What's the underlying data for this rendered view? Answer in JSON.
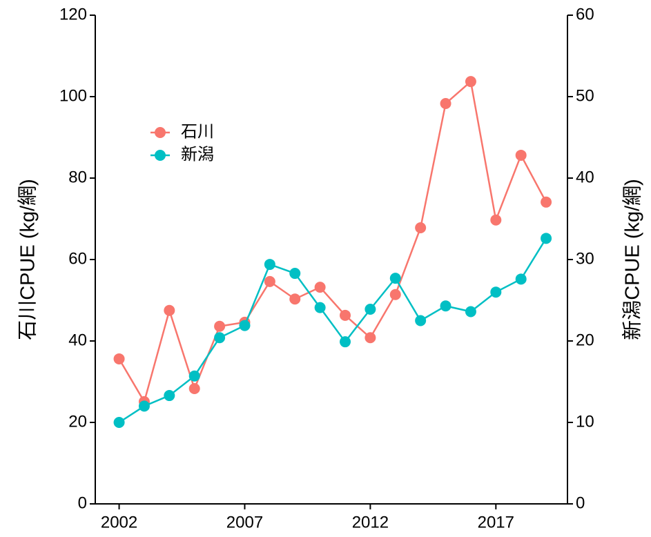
{
  "chart_data": {
    "type": "line",
    "x": [
      2002,
      2003,
      2004,
      2005,
      2006,
      2007,
      2008,
      2009,
      2010,
      2011,
      2012,
      2013,
      2014,
      2015,
      2016,
      2017,
      2018,
      2019
    ],
    "series": [
      {
        "name": "石川",
        "color": "#f8766d",
        "values": [
          35.6,
          25.1,
          47.5,
          28.3,
          43.6,
          44.6,
          54.6,
          50.3,
          53.2,
          46.3,
          40.8,
          51.4,
          67.8,
          98.3,
          103.7,
          69.7,
          85.6,
          74.1
        ]
      },
      {
        "name": "新潟",
        "color": "#00bfc4",
        "axis": "y2",
        "values": [
          10.0,
          12.0,
          13.3,
          15.7,
          20.4,
          21.9,
          29.4,
          28.3,
          24.1,
          19.9,
          23.9,
          27.7,
          22.5,
          24.3,
          23.6,
          26.0,
          27.6,
          32.6
        ]
      }
    ],
    "y_label": "石川CPUE (kg/網)",
    "y2_label": "新潟CPUE (kg/網)",
    "xlim": [
      2001.05,
      2019.85
    ],
    "xticks": [
      2002,
      2007,
      2012,
      2017
    ],
    "ylim": [
      0,
      120
    ],
    "yticks": [
      0,
      20,
      40,
      60,
      80,
      100,
      120
    ],
    "y2lim": [
      0,
      60
    ],
    "y2ticks": [
      0,
      10,
      20,
      30,
      40,
      50,
      60
    ],
    "grid": false,
    "legend": "upper left"
  }
}
